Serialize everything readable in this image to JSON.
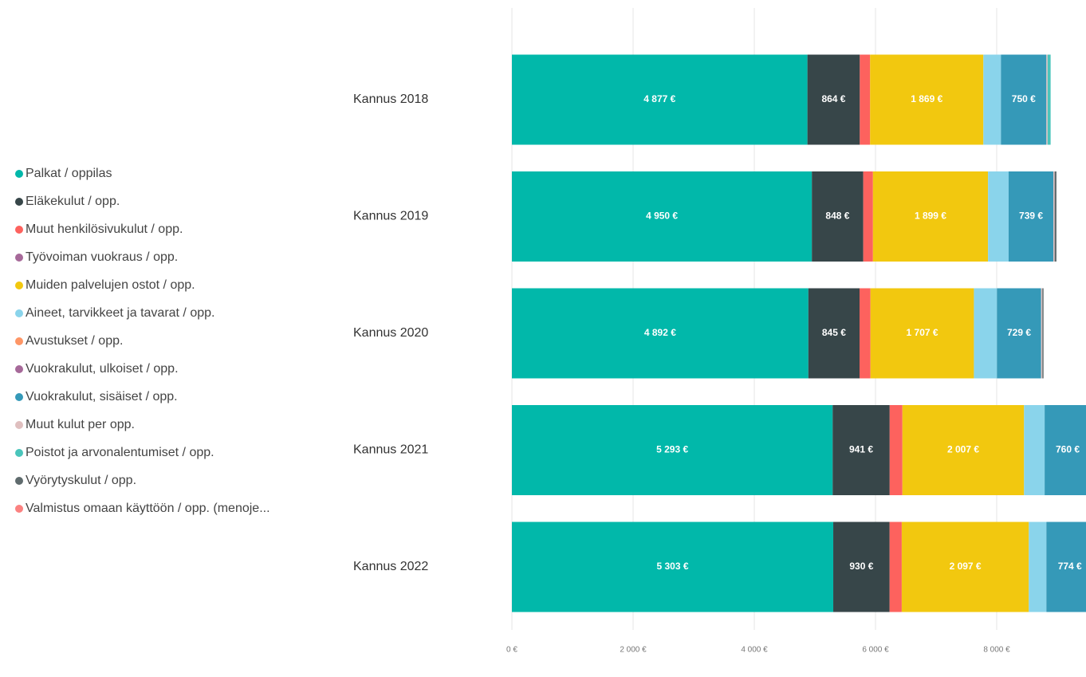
{
  "chart_data": {
    "type": "stacked_barh",
    "categories": [
      "Kannus 2018",
      "Kannus 2019",
      "Kannus 2020",
      "Kannus 2021",
      "Kannus 2022"
    ],
    "series": [
      {
        "name": "Palkat / oppilas",
        "color": "#01B8AA",
        "values": [
          4877,
          4950,
          4892,
          5293,
          5303
        ],
        "value_labels": [
          "4 877 €",
          "4 950 €",
          "4 892 €",
          "5 293 €",
          "5 303 €"
        ]
      },
      {
        "name": "Eläkekulut / opp.",
        "color": "#374649",
        "values": [
          864,
          848,
          845,
          941,
          930
        ],
        "value_labels": [
          "864 €",
          "848 €",
          "845 €",
          "941 €",
          "930 €"
        ]
      },
      {
        "name": "Muut henkilösivukulut / opp.",
        "color": "#FD625E",
        "values": [
          170,
          160,
          180,
          210,
          200
        ]
      },
      {
        "name": "Työvoiman vuokraus / opp.",
        "color": "#A66999",
        "values": [
          0,
          0,
          0,
          0,
          0
        ]
      },
      {
        "name": "Muiden palvelujen ostot / opp.",
        "color": "#F2C80F",
        "values": [
          1869,
          1899,
          1707,
          2007,
          2097
        ],
        "value_labels": [
          "1 869 €",
          "1 899 €",
          "1 707 €",
          "2 007 €",
          "2 097 €"
        ]
      },
      {
        "name": "Aineet, tarvikkeet ja tavarat / opp.",
        "color": "#8AD4EB",
        "values": [
          290,
          340,
          380,
          340,
          290
        ]
      },
      {
        "name": "Avustukset / opp.",
        "color": "#FE9666",
        "values": [
          0,
          0,
          0,
          0,
          0
        ]
      },
      {
        "name": "Vuokrakulut, ulkoiset / opp.",
        "color": "#A66999",
        "values": [
          0,
          0,
          0,
          0,
          0
        ]
      },
      {
        "name": "Vuokrakulut, sisäiset / opp.",
        "color": "#3599B8",
        "values": [
          750,
          739,
          729,
          760,
          774
        ],
        "value_labels": [
          "750 €",
          "739 €",
          "729 €",
          "760 €",
          "774 €"
        ]
      },
      {
        "name": "Muut kulut per opp.",
        "color": "#DFBFBF",
        "values": [
          20,
          20,
          20,
          20,
          20
        ]
      },
      {
        "name": "Poistot ja arvonalentumiset / opp.",
        "color": "#4AC5BB",
        "values": [
          50,
          0,
          0,
          0,
          0
        ]
      },
      {
        "name": "Vyörytyskulut / opp.",
        "color": "#5F6B6D",
        "values": [
          0,
          30,
          20,
          0,
          0
        ]
      },
      {
        "name": "Valmistus omaan käyttöön / opp. (menoje...",
        "color": "#FB8281",
        "values": [
          0,
          0,
          0,
          0,
          0
        ]
      }
    ],
    "xlim": [
      0,
      9500
    ],
    "xticks": [
      {
        "value": 0,
        "label": "0 €"
      },
      {
        "value": 2000,
        "label": "2 000 €"
      },
      {
        "value": 4000,
        "label": "4 000 €"
      },
      {
        "value": 6000,
        "label": "6 000 €"
      },
      {
        "value": 8000,
        "label": "8 000 €"
      }
    ],
    "grid": true
  }
}
